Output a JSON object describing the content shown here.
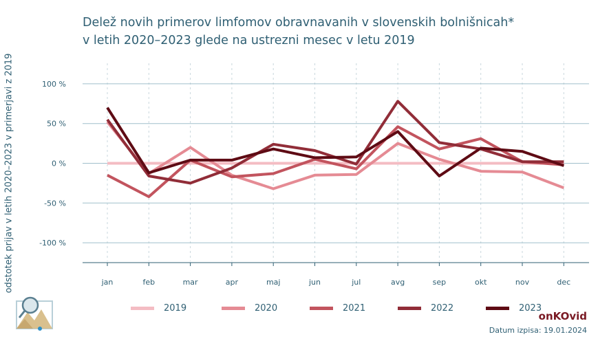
{
  "title_line1": "Delež novih primerov limfomov obravnavanih v slovenskih bolnišnicah*",
  "title_line2": "v letih 2020–2023 glede na ustrezni mesec v letu 2019",
  "brand": "onKOvid",
  "date_label": "Datum izpisa: 19.01.2024",
  "logo_icon": "magnifier-mountain-icon",
  "chart_data": {
    "type": "line",
    "title": "Delež novih primerov limfomov obravnavanih v slovenskih bolnišnicah* v letih 2020–2023 glede na ustrezni mesec v letu 2019",
    "xlabel": "",
    "ylabel": "odstotek prijav v letih 2020–2023 v primerjavi z 2019",
    "categories": [
      "jan",
      "feb",
      "mar",
      "apr",
      "maj",
      "jun",
      "jul",
      "avg",
      "sep",
      "okt",
      "nov",
      "dec"
    ],
    "yticks": [
      100,
      50,
      0,
      -50,
      -100
    ],
    "ytick_labels": [
      "100 %",
      "50 %",
      "0 %",
      "-50 %",
      "-100 %"
    ],
    "ylim": [
      -125,
      125
    ],
    "grid": true,
    "legend_position": "bottom",
    "series": [
      {
        "name": "2019",
        "color": "#f4bcc3",
        "values": [
          0,
          0,
          0,
          0,
          0,
          0,
          0,
          0,
          0,
          0,
          0,
          0
        ]
      },
      {
        "name": "2020",
        "color": "#e58b94",
        "values": [
          52,
          -13,
          20,
          -15,
          -32,
          -15,
          -14,
          25,
          5,
          -10,
          -11,
          -31
        ]
      },
      {
        "name": "2021",
        "color": "#c2545e",
        "values": [
          -15,
          -42,
          4,
          -17,
          -13,
          5,
          -7,
          46,
          18,
          31,
          2,
          -2
        ]
      },
      {
        "name": "2022",
        "color": "#912d38",
        "values": [
          55,
          -16,
          -25,
          -6,
          24,
          16,
          -1,
          78,
          26,
          18,
          2,
          2
        ]
      },
      {
        "name": "2023",
        "color": "#5e0b14",
        "values": [
          70,
          -12,
          4,
          4,
          18,
          7,
          8,
          40,
          -16,
          19,
          15,
          -3
        ]
      }
    ]
  }
}
